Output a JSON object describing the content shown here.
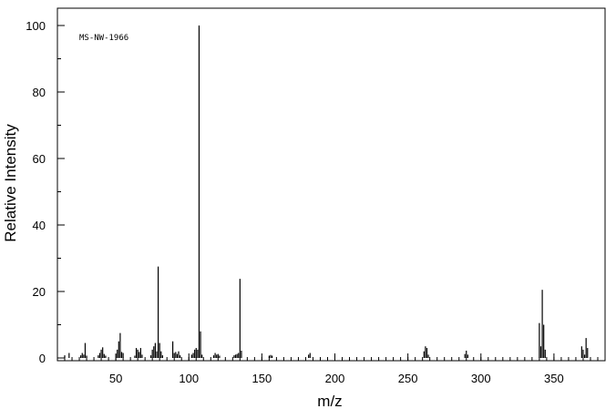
{
  "chart_data": {
    "type": "bar",
    "annotation": "MS-NW-1966",
    "xlabel": "m/z",
    "ylabel": "Relative Intensity",
    "xlim": [
      10,
      385
    ],
    "ylim": [
      0,
      105
    ],
    "x_ticks": [
      50,
      100,
      150,
      200,
      250,
      300,
      350
    ],
    "y_ticks": [
      0,
      20,
      40,
      60,
      80,
      100
    ],
    "grid": false,
    "series": [
      {
        "x": [
          15,
          18,
          26,
          27,
          28,
          29,
          30,
          38,
          39,
          40,
          41,
          42,
          43,
          50,
          51,
          52,
          53,
          54,
          55,
          63,
          64,
          65,
          66,
          67,
          68,
          74,
          75,
          76,
          77,
          78,
          79,
          80,
          81,
          82,
          89,
          90,
          91,
          92,
          93,
          94,
          102,
          103,
          104,
          105,
          106,
          107,
          108,
          109,
          117,
          118,
          119,
          120,
          121,
          131,
          132,
          133,
          134,
          135,
          136,
          155,
          156,
          157,
          182,
          183,
          261,
          262,
          263,
          264,
          289,
          290,
          291,
          340,
          341,
          342,
          343,
          344,
          369,
          370,
          371,
          372,
          373
        ],
        "values": [
          0.8,
          1.5,
          0.8,
          1.5,
          1.0,
          4.5,
          0.7,
          0.8,
          1.5,
          2.5,
          3.2,
          1.2,
          0.7,
          1.2,
          2.5,
          5.0,
          7.5,
          1.8,
          1.5,
          0.7,
          3.0,
          2.5,
          1.8,
          3.0,
          1.0,
          0.8,
          2.5,
          3.5,
          4.5,
          2.0,
          27.5,
          4.5,
          2.0,
          0.8,
          5.0,
          1.5,
          1.8,
          1.2,
          2.0,
          0.8,
          1.0,
          1.5,
          2.5,
          3.0,
          2.5,
          100,
          8.0,
          1.0,
          0.8,
          1.5,
          1.0,
          1.2,
          0.7,
          0.8,
          1.0,
          1.2,
          1.5,
          23.8,
          2.2,
          0.7,
          0.9,
          0.7,
          1.0,
          1.5,
          2.0,
          3.5,
          3.0,
          1.0,
          1.2,
          2.2,
          1.0,
          10.5,
          3.5,
          20.5,
          10.0,
          2.5,
          3.5,
          2.5,
          1.0,
          6.0,
          3.0
        ]
      }
    ]
  }
}
